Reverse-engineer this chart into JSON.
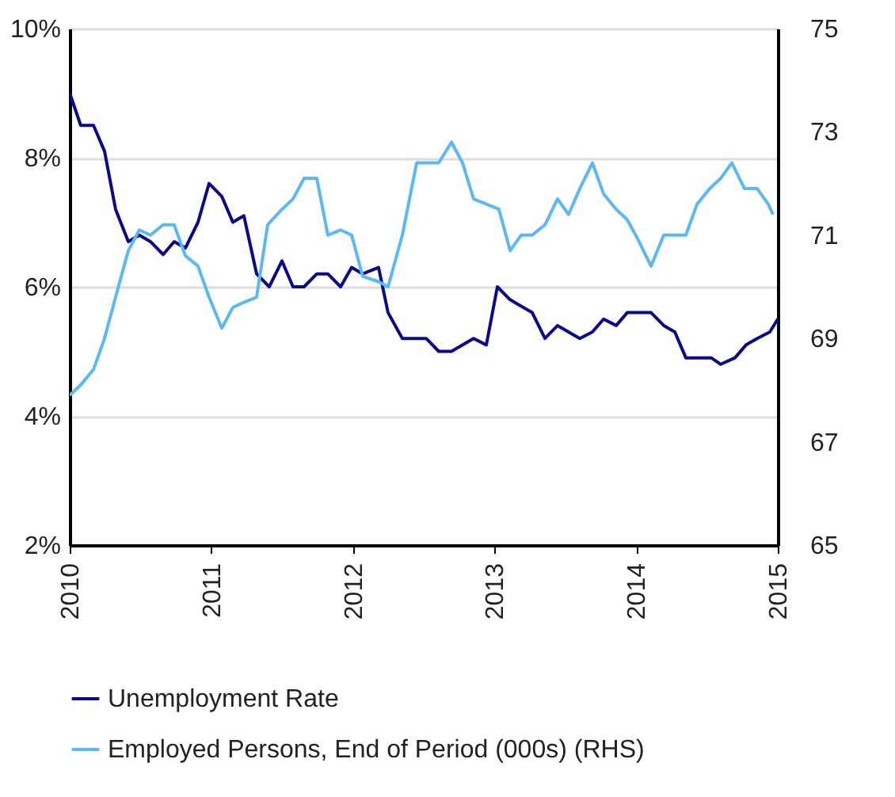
{
  "chart_data": {
    "type": "line",
    "xlim": [
      2010,
      2015
    ],
    "xticks": [
      2010,
      2011,
      2012,
      2013,
      2014,
      2015
    ],
    "ylim": [
      2,
      10
    ],
    "yticks": [
      {
        "value": 2,
        "label": "2%"
      },
      {
        "value": 4,
        "label": "4%"
      },
      {
        "value": 6,
        "label": "6%"
      },
      {
        "value": 8,
        "label": "8%"
      },
      {
        "value": 10,
        "label": "10%"
      }
    ],
    "y2lim": [
      65,
      75
    ],
    "y2ticks": [
      65,
      67,
      69,
      71,
      73,
      75
    ],
    "grid": "y",
    "legend": "bottom left",
    "series": [
      {
        "name": "Unemployment Rate",
        "color": "#0a0a8c",
        "x": [
          2010,
          2010.078,
          2010.168,
          2010.246,
          2010.324,
          2010.414,
          2010.492,
          2010.57,
          2010.66,
          2010.738,
          2010.817,
          2010.906,
          2010.984,
          2011.074,
          2011.152,
          2011.23,
          2011.32,
          2011.409,
          2011.499,
          2011.577,
          2011.655,
          2011.745,
          2011.823,
          2011.913,
          2011.991,
          2012.069,
          2012.181,
          2012.248,
          2012.349,
          2012.517,
          2012.606,
          2012.696,
          2012.852,
          2012.942,
          2013.02,
          2013.11,
          2013.188,
          2013.266,
          2013.356,
          2013.445,
          2013.602,
          2013.691,
          2013.77,
          2013.859,
          2013.937,
          2014.105,
          2014.195,
          2014.273,
          2014.351,
          2014.53,
          2014.597,
          2014.698,
          2014.776,
          2014.855,
          2014.944,
          2015
        ],
        "values": [
          9.0,
          8.5,
          8.5,
          8.1,
          7.2,
          6.7,
          6.8,
          6.7,
          6.5,
          6.7,
          6.6,
          7.0,
          7.6,
          7.4,
          7.0,
          7.1,
          6.2,
          6.0,
          6.4,
          6.0,
          6.0,
          6.2,
          6.2,
          6.0,
          6.3,
          6.2,
          6.3,
          5.6,
          5.2,
          5.2,
          5.0,
          5.0,
          5.2,
          5.1,
          6.0,
          5.8,
          5.7,
          5.6,
          5.2,
          5.4,
          5.2,
          5.3,
          5.5,
          5.4,
          5.6,
          5.6,
          5.4,
          5.3,
          4.9,
          4.9,
          4.8,
          4.9,
          5.1,
          5.2,
          5.3,
          5.5
        ]
      },
      {
        "name": "Employed Persons, End of Period (000s) (RHS)",
        "color": "#5bb8f5",
        "axis": "y2",
        "x": [
          2010,
          2010.078,
          2010.168,
          2010.246,
          2010.324,
          2010.414,
          2010.492,
          2010.57,
          2010.66,
          2010.738,
          2010.817,
          2010.906,
          2010.984,
          2011.074,
          2011.152,
          2011.23,
          2011.32,
          2011.398,
          2011.499,
          2011.577,
          2011.655,
          2011.745,
          2011.823,
          2011.913,
          2011.991,
          2012.069,
          2012.181,
          2012.248,
          2012.349,
          2012.45,
          2012.517,
          2012.606,
          2012.696,
          2012.774,
          2012.852,
          2012.942,
          2013.031,
          2013.11,
          2013.188,
          2013.266,
          2013.356,
          2013.445,
          2013.523,
          2013.602,
          2013.691,
          2013.77,
          2013.859,
          2013.937,
          2014.016,
          2014.105,
          2014.195,
          2014.273,
          2014.351,
          2014.43,
          2014.519,
          2014.597,
          2014.676,
          2014.765,
          2014.855,
          2014.933,
          2014.966
        ],
        "values": [
          67.9,
          68.1,
          68.4,
          69.0,
          69.8,
          70.7,
          71.1,
          71.0,
          71.2,
          71.2,
          70.6,
          70.4,
          69.8,
          69.2,
          69.6,
          69.7,
          69.8,
          71.2,
          71.5,
          71.7,
          72.1,
          72.1,
          71.0,
          71.1,
          71.0,
          70.2,
          70.1,
          70.0,
          71.0,
          72.4,
          72.4,
          72.4,
          72.8,
          72.4,
          71.7,
          71.6,
          71.5,
          70.7,
          71.0,
          71.0,
          71.2,
          71.7,
          71.4,
          71.9,
          72.4,
          71.8,
          71.5,
          71.3,
          70.9,
          70.4,
          71.0,
          71.0,
          71.0,
          71.6,
          71.9,
          72.1,
          72.4,
          71.9,
          71.9,
          71.6,
          71.4
        ]
      }
    ]
  }
}
